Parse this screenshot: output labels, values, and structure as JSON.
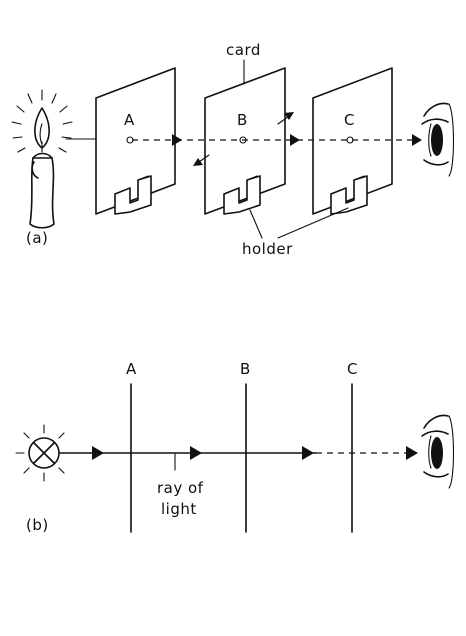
{
  "part_a": {
    "label": "(a)",
    "card_labels": [
      "A",
      "B",
      "C"
    ],
    "card_callout": "card",
    "holder_callout": "holder",
    "icons": [
      "candle-icon",
      "eye-icon",
      "card-icon",
      "holder-icon",
      "arrow-icon"
    ]
  },
  "part_b": {
    "label": "(b)",
    "screen_labels": [
      "A",
      "B",
      "C"
    ],
    "ray_callout_line1": "ray of",
    "ray_callout_line2": "light",
    "icons": [
      "light-bulb-icon",
      "eye-icon",
      "arrow-icon"
    ]
  },
  "colors": {
    "ink": "#111111",
    "paper": "#ffffff"
  }
}
